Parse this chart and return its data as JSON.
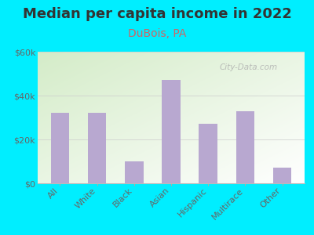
{
  "title": "Median per capita income in 2022",
  "subtitle": "DuBois, PA",
  "categories": [
    "All",
    "White",
    "Black",
    "Asian",
    "Hispanic",
    "Multirace",
    "Other"
  ],
  "values": [
    32000,
    32000,
    10000,
    47000,
    27000,
    33000,
    7000
  ],
  "bar_color": "#b8a8d0",
  "background_outer": "#00eeff",
  "background_chart_topleft": "#d4ecc8",
  "background_chart_bottomright": "#ffffff",
  "title_color": "#333333",
  "subtitle_color": "#cc6666",
  "tick_color": "#666666",
  "ylim": [
    0,
    60000
  ],
  "yticks": [
    0,
    20000,
    40000,
    60000
  ],
  "ytick_labels": [
    "$0",
    "$20k",
    "$40k",
    "$60k"
  ],
  "title_fontsize": 13,
  "subtitle_fontsize": 10,
  "tick_fontsize": 8,
  "watermark_text": "City-Data.com"
}
